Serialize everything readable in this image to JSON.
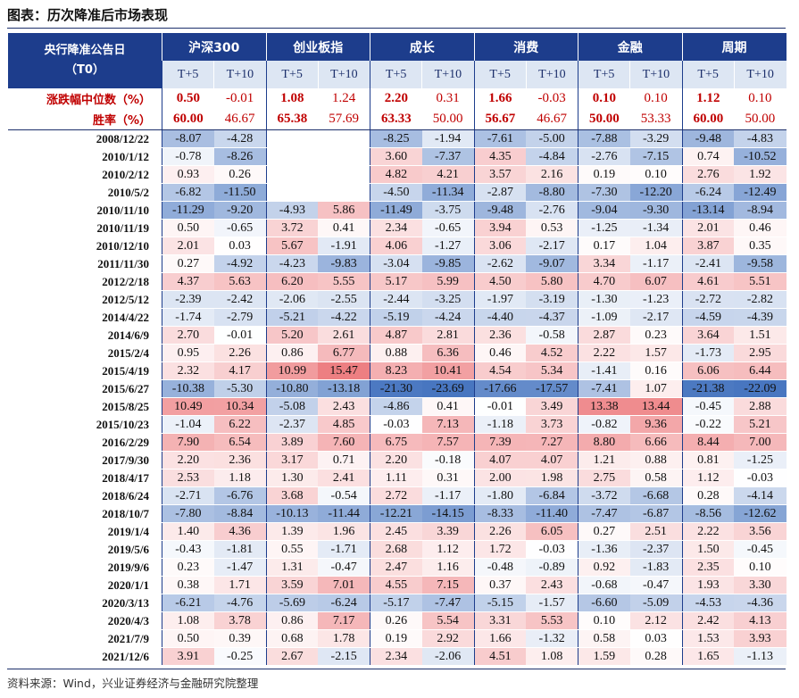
{
  "title": "图表：历次降准后市场表现",
  "table": {
    "corner": [
      "央行降准公告日",
      "（T0）"
    ],
    "groups": [
      "沪深300",
      "创业板指",
      "成长",
      "消费",
      "金融",
      "周期"
    ],
    "subheaders": [
      "T+5",
      "T+10",
      "T+5",
      "T+10",
      "T+5",
      "T+10",
      "T+5",
      "T+10",
      "T+5",
      "T+10",
      "T+5",
      "T+10"
    ],
    "summary": [
      {
        "label": "涨跌幅中位数（%）",
        "values": [
          "0.50",
          "-0.01",
          "1.08",
          "1.24",
          "2.20",
          "0.31",
          "1.66",
          "-0.03",
          "0.10",
          "0.10",
          "1.12",
          "0.10"
        ]
      },
      {
        "label": "胜率（%）",
        "values": [
          "60.00",
          "46.67",
          "65.38",
          "57.69",
          "63.33",
          "50.00",
          "56.67",
          "46.67",
          "50.00",
          "53.33",
          "60.00",
          "50.00"
        ]
      }
    ],
    "rows": [
      {
        "date": "2008/12/22",
        "values": [
          "-8.07",
          "-4.28",
          null,
          null,
          "-8.25",
          "-1.94",
          "-7.61",
          "-5.00",
          "-7.88",
          "-3.29",
          "-9.48",
          "-4.83"
        ]
      },
      {
        "date": "2010/1/12",
        "values": [
          "-0.78",
          "-8.26",
          null,
          null,
          "3.60",
          "-7.37",
          "4.35",
          "-4.84",
          "-2.76",
          "-7.15",
          "0.74",
          "-10.52"
        ]
      },
      {
        "date": "2010/2/12",
        "values": [
          "0.93",
          "0.26",
          null,
          null,
          "4.82",
          "4.21",
          "3.57",
          "2.16",
          "0.19",
          "0.10",
          "2.76",
          "1.92"
        ]
      },
      {
        "date": "2010/5/2",
        "values": [
          "-6.82",
          "-11.50",
          null,
          null,
          "-4.50",
          "-11.34",
          "-2.87",
          "-8.80",
          "-7.30",
          "-12.20",
          "-6.24",
          "-12.49"
        ]
      },
      {
        "date": "2010/11/10",
        "values": [
          "-11.29",
          "-9.20",
          "-4.93",
          "5.86",
          "-11.49",
          "-3.75",
          "-9.48",
          "-2.76",
          "-9.04",
          "-9.30",
          "-13.14",
          "-8.94"
        ]
      },
      {
        "date": "2010/11/19",
        "values": [
          "0.50",
          "-0.65",
          "3.72",
          "0.41",
          "2.34",
          "-0.65",
          "3.94",
          "0.53",
          "-1.25",
          "-1.34",
          "2.01",
          "0.46"
        ]
      },
      {
        "date": "2010/12/10",
        "values": [
          "2.01",
          "0.03",
          "5.67",
          "-1.91",
          "4.06",
          "-1.27",
          "3.06",
          "-2.17",
          "0.17",
          "1.04",
          "3.87",
          "0.35"
        ]
      },
      {
        "date": "2011/11/30",
        "values": [
          "0.27",
          "-4.92",
          "-4.23",
          "-9.83",
          "-3.04",
          "-9.85",
          "-2.62",
          "-9.07",
          "3.34",
          "-1.17",
          "-2.41",
          "-9.58"
        ]
      },
      {
        "date": "2012/2/18",
        "values": [
          "4.37",
          "5.63",
          "6.20",
          "5.55",
          "5.17",
          "5.99",
          "4.50",
          "5.80",
          "4.70",
          "6.07",
          "4.61",
          "5.51"
        ]
      },
      {
        "date": "2012/5/12",
        "values": [
          "-2.39",
          "-2.42",
          "-2.06",
          "-2.55",
          "-2.44",
          "-3.25",
          "-1.97",
          "-3.19",
          "-1.30",
          "-1.23",
          "-2.72",
          "-2.82"
        ]
      },
      {
        "date": "2014/4/22",
        "values": [
          "-1.74",
          "-2.79",
          "-5.21",
          "-4.22",
          "-5.19",
          "-4.24",
          "-4.40",
          "-4.37",
          "-1.09",
          "-2.17",
          "-4.59",
          "-4.39"
        ]
      },
      {
        "date": "2014/6/9",
        "values": [
          "2.70",
          "-0.01",
          "5.20",
          "2.61",
          "4.87",
          "2.81",
          "2.36",
          "-0.58",
          "2.87",
          "0.23",
          "3.64",
          "1.51"
        ]
      },
      {
        "date": "2015/2/4",
        "values": [
          "0.95",
          "2.26",
          "0.86",
          "6.77",
          "0.88",
          "6.36",
          "0.46",
          "4.52",
          "2.22",
          "1.57",
          "-1.73",
          "2.95"
        ]
      },
      {
        "date": "2015/4/19",
        "values": [
          "2.32",
          "4.17",
          "10.99",
          "15.47",
          "8.23",
          "10.41",
          "4.54",
          "5.34",
          "-1.41",
          "0.16",
          "6.06",
          "6.44"
        ]
      },
      {
        "date": "2015/6/27",
        "values": [
          "-10.38",
          "-5.30",
          "-10.80",
          "-13.18",
          "-21.30",
          "-23.69",
          "-17.66",
          "-17.57",
          "-7.41",
          "1.07",
          "-21.38",
          "-22.09"
        ]
      },
      {
        "date": "2015/8/25",
        "values": [
          "10.49",
          "10.34",
          "-5.08",
          "2.43",
          "-4.86",
          "0.41",
          "-0.01",
          "3.49",
          "13.38",
          "13.44",
          "-0.45",
          "2.88"
        ]
      },
      {
        "date": "2015/10/23",
        "values": [
          "-1.04",
          "6.22",
          "-2.37",
          "4.85",
          "-0.03",
          "7.13",
          "-1.18",
          "3.73",
          "-0.82",
          "9.36",
          "-0.22",
          "5.21"
        ]
      },
      {
        "date": "2016/2/29",
        "values": [
          "7.90",
          "6.54",
          "3.89",
          "7.60",
          "6.75",
          "7.57",
          "7.39",
          "7.27",
          "8.80",
          "6.66",
          "8.44",
          "7.00"
        ]
      },
      {
        "date": "2017/9/30",
        "values": [
          "2.20",
          "2.36",
          "3.17",
          "0.71",
          "2.20",
          "-0.18",
          "4.07",
          "4.07",
          "1.21",
          "0.88",
          "0.81",
          "-1.25"
        ]
      },
      {
        "date": "2018/4/17",
        "values": [
          "2.53",
          "1.18",
          "1.30",
          "2.41",
          "1.11",
          "0.31",
          "2.00",
          "1.98",
          "2.75",
          "0.58",
          "1.12",
          "-0.03"
        ]
      },
      {
        "date": "2018/6/24",
        "values": [
          "-2.71",
          "-6.76",
          "3.68",
          "-0.54",
          "2.72",
          "-1.17",
          "-1.80",
          "-6.84",
          "-3.72",
          "-6.68",
          "0.28",
          "-4.14"
        ]
      },
      {
        "date": "2018/10/7",
        "values": [
          "-7.80",
          "-8.84",
          "-10.13",
          "-11.44",
          "-12.21",
          "-14.15",
          "-8.33",
          "-11.40",
          "-7.47",
          "-6.87",
          "-8.56",
          "-12.62"
        ]
      },
      {
        "date": "2019/1/4",
        "values": [
          "1.40",
          "4.36",
          "1.39",
          "1.96",
          "2.45",
          "3.39",
          "2.26",
          "6.05",
          "0.27",
          "2.51",
          "2.22",
          "3.56"
        ]
      },
      {
        "date": "2019/5/6",
        "values": [
          "-0.43",
          "-1.81",
          "0.55",
          "-1.71",
          "2.68",
          "1.12",
          "1.72",
          "-0.03",
          "-1.36",
          "-2.37",
          "1.50",
          "-0.45"
        ]
      },
      {
        "date": "2019/9/6",
        "values": [
          "0.23",
          "-1.47",
          "1.31",
          "-0.47",
          "2.47",
          "1.16",
          "-0.48",
          "-0.89",
          "0.92",
          "-1.83",
          "2.35",
          "0.10"
        ]
      },
      {
        "date": "2020/1/1",
        "values": [
          "0.38",
          "1.71",
          "3.59",
          "7.01",
          "4.55",
          "7.15",
          "0.37",
          "2.43",
          "-0.68",
          "-0.47",
          "1.93",
          "3.30"
        ]
      },
      {
        "date": "2020/3/13",
        "values": [
          "-6.21",
          "-4.76",
          "-5.69",
          "-6.24",
          "-5.17",
          "-7.47",
          "-5.15",
          "-1.57",
          "-6.60",
          "-5.09",
          "-4.53",
          "-4.36"
        ]
      },
      {
        "date": "2020/4/3",
        "values": [
          "1.08",
          "3.78",
          "0.86",
          "7.17",
          "0.26",
          "5.54",
          "3.31",
          "5.53",
          "0.10",
          "2.12",
          "2.42",
          "4.13"
        ]
      },
      {
        "date": "2021/7/9",
        "values": [
          "0.50",
          "0.39",
          "0.68",
          "1.78",
          "0.19",
          "2.92",
          "1.66",
          "-1.32",
          "0.58",
          "0.03",
          "1.53",
          "3.93"
        ]
      },
      {
        "date": "2021/12/6",
        "values": [
          "3.91",
          "-0.25",
          "2.67",
          "-2.15",
          "2.34",
          "-2.06",
          "4.51",
          "1.08",
          "1.59",
          "0.28",
          "1.65",
          "-1.13"
        ]
      }
    ]
  },
  "source": "资料来源：Wind，兴业证券经济与金融研究院整理"
}
